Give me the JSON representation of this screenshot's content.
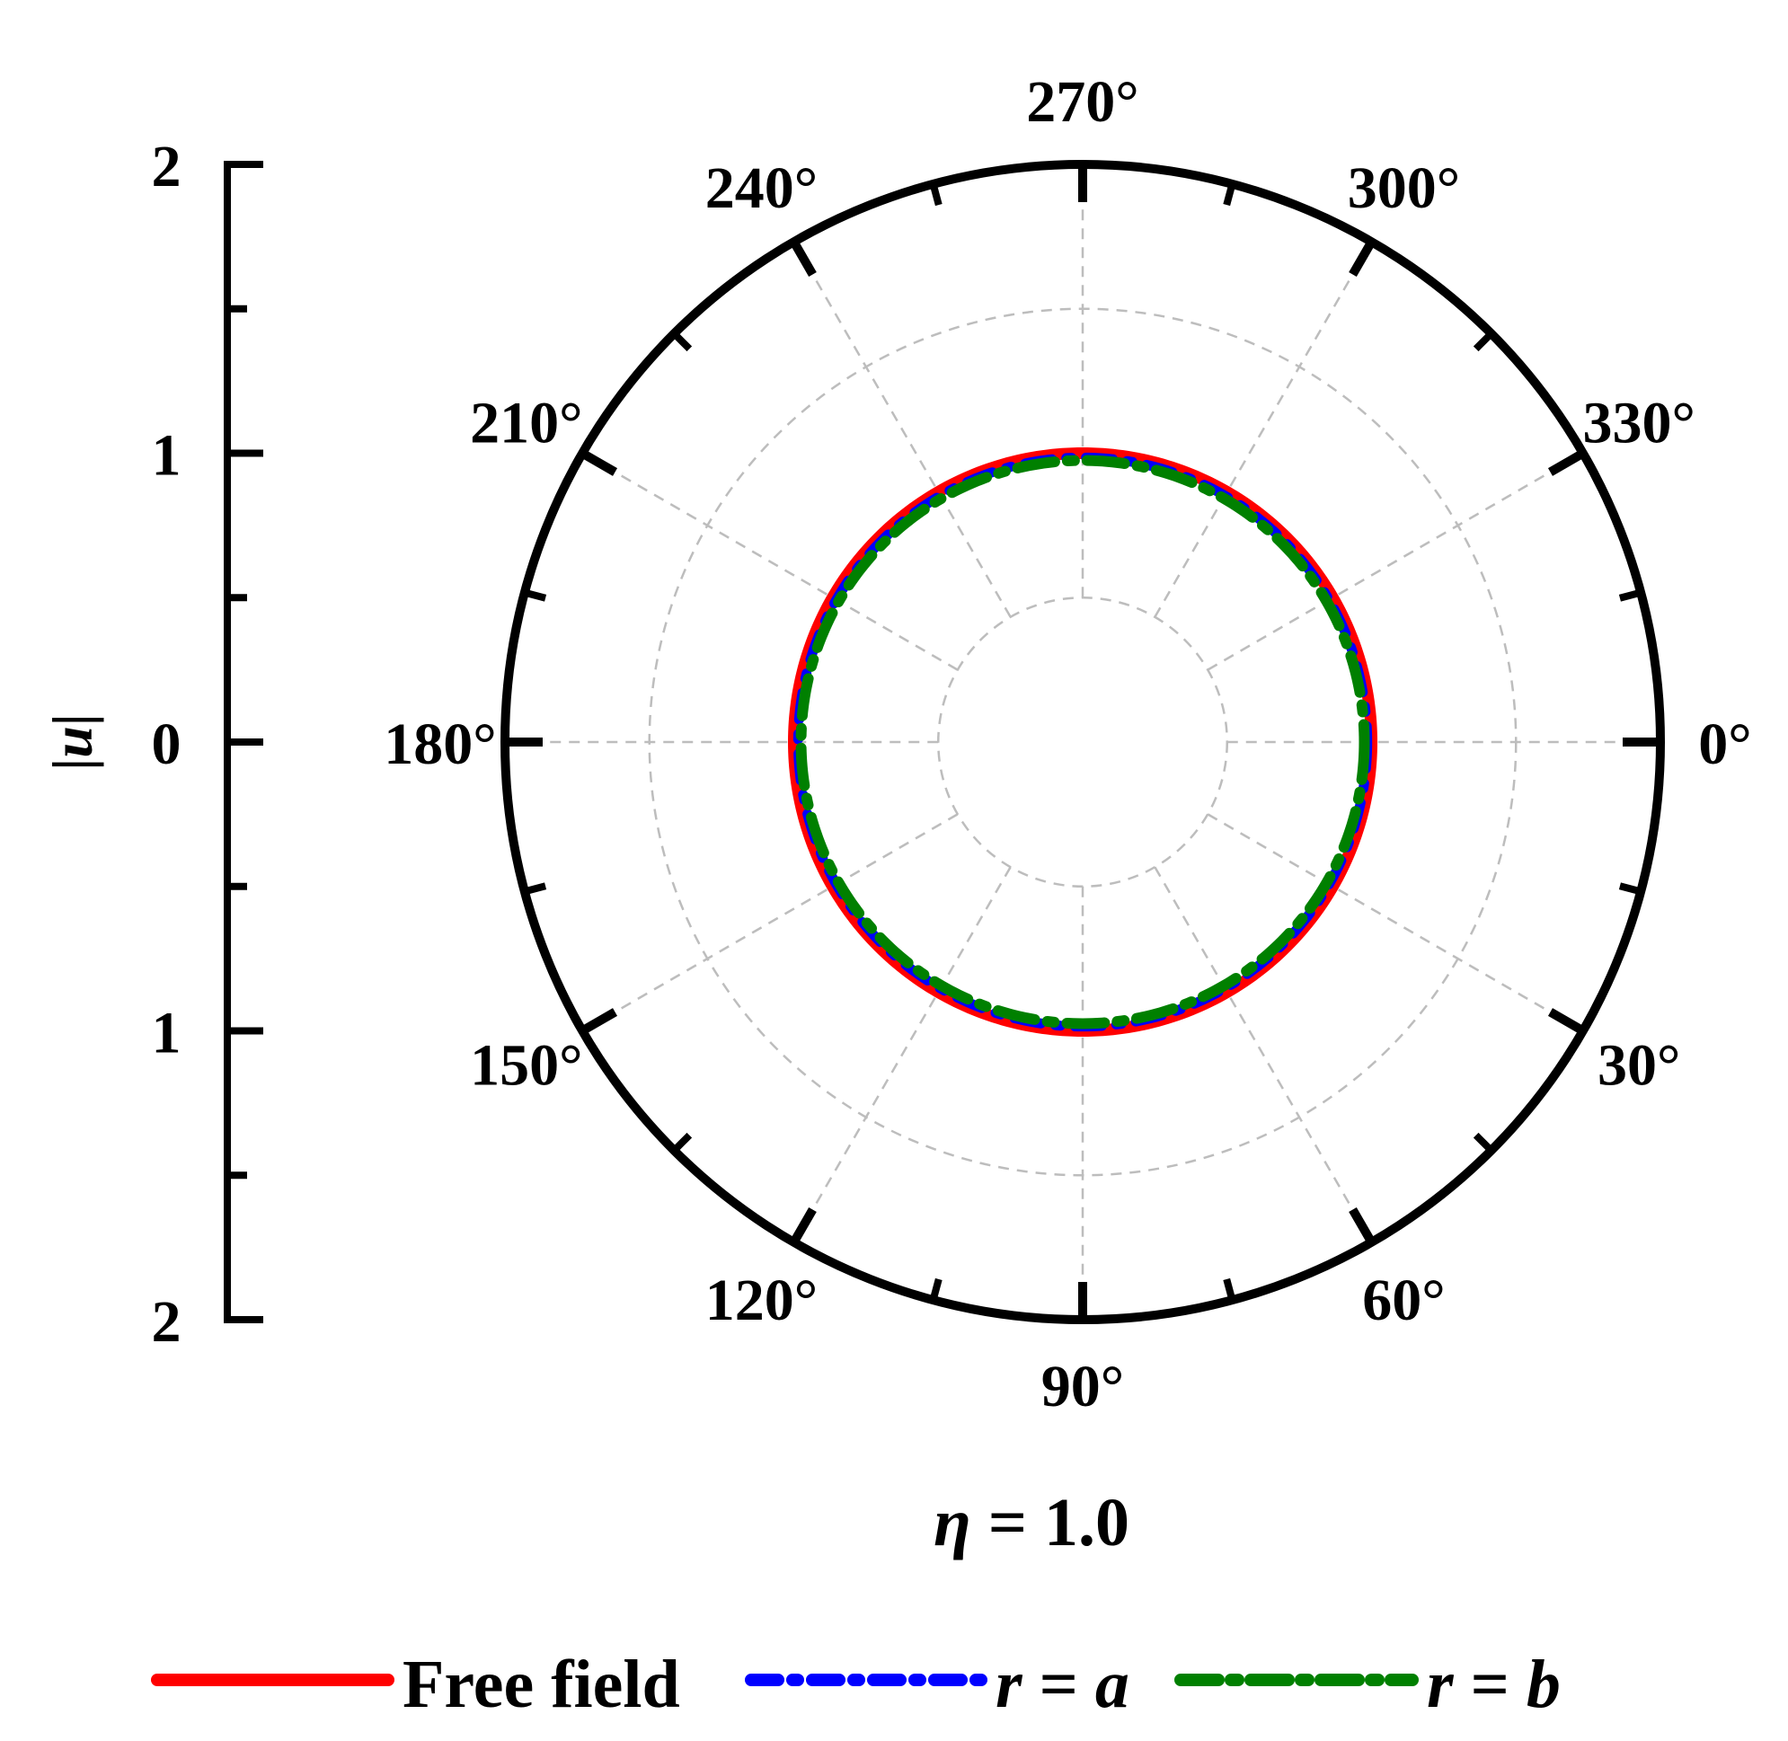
{
  "chart_data": {
    "type": "polar-line",
    "title": "η = 1.0",
    "title_parts": {
      "symbol": "η",
      "rest": " = 1.0"
    },
    "radial_axis": {
      "label": "|u|",
      "label_parts": {
        "bar_left": "|",
        "symbol": "u",
        "bar_right": "|"
      },
      "range": [
        0,
        2
      ],
      "major_tick_labels": [
        "2",
        "1",
        "0",
        "1",
        "2"
      ],
      "minor_step": 0.5
    },
    "angular_axis": {
      "unit": "deg",
      "direction": "clockwise",
      "zero_at": "right",
      "tick_labels": [
        "0°",
        "30°",
        "60°",
        "90°",
        "120°",
        "150°",
        "180°",
        "210°",
        "240°",
        "270°",
        "300°",
        "330°"
      ],
      "tick_angles": [
        0,
        30,
        60,
        90,
        120,
        150,
        180,
        210,
        240,
        270,
        300,
        330
      ],
      "minor_step": 15
    },
    "grid": true,
    "grid_rings": [
      0.5,
      1.0,
      1.5
    ],
    "grid_spoke_step": 30,
    "series": [
      {
        "name": "Free field",
        "label_parts": {
          "text": "Free field"
        },
        "color": "#ff0000",
        "style": "solid",
        "theta": [
          0,
          90,
          180,
          270,
          360
        ],
        "r": [
          1.0,
          1.0,
          1.0,
          1.0,
          1.0
        ]
      },
      {
        "name": "r = a",
        "label_parts": {
          "var": "r",
          "eq": " = ",
          "val": "a"
        },
        "color": "#0000ff",
        "style": "dash-dot",
        "theta": [
          0,
          90,
          180,
          270,
          360
        ],
        "r": [
          0.985,
          0.985,
          0.985,
          0.985,
          0.985
        ]
      },
      {
        "name": "r = b",
        "label_parts": {
          "var": "r",
          "eq": " = ",
          "val": "b"
        },
        "color": "#008000",
        "style": "dash-dot",
        "theta": [
          0,
          90,
          180,
          270,
          360
        ],
        "r": [
          0.975,
          0.975,
          0.975,
          0.975,
          0.975
        ]
      }
    ],
    "legend": "bottom"
  }
}
